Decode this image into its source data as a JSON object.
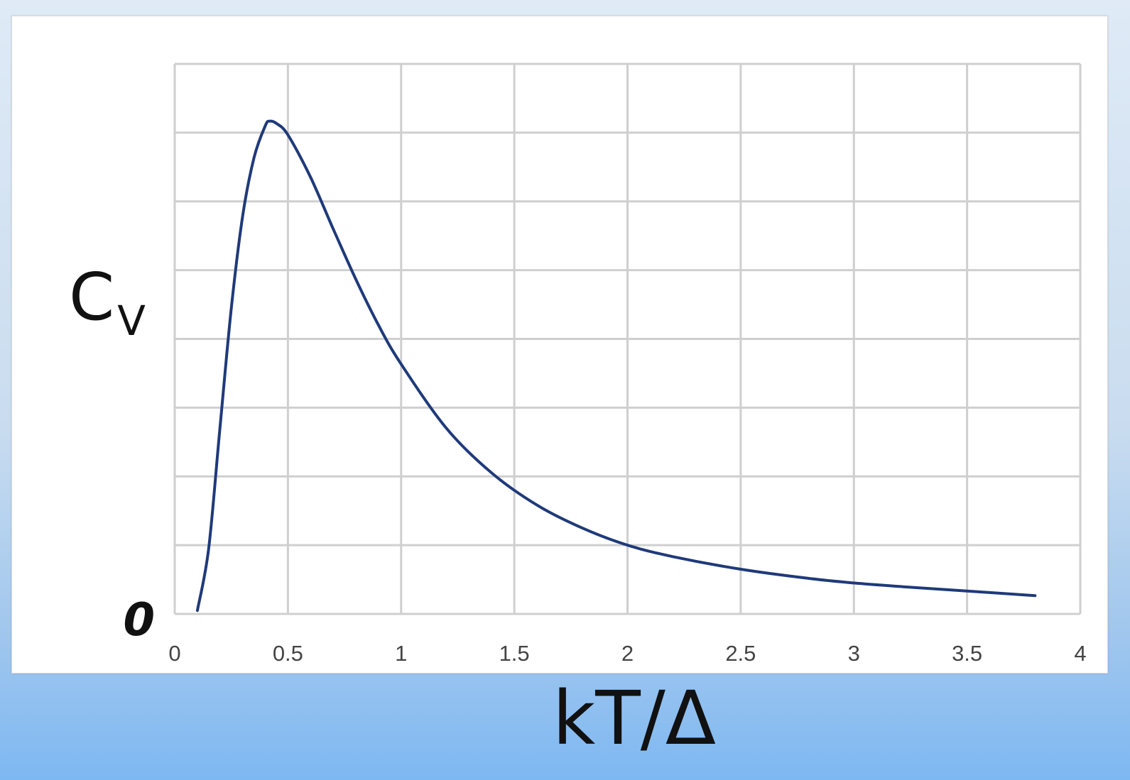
{
  "chart_data": {
    "type": "line",
    "title": "",
    "xlabel": "kT/Δ",
    "ylabel": "C",
    "ylabel_subscript": "V",
    "xlim": [
      0,
      4
    ],
    "ylim": [
      0,
      0.48
    ],
    "x_ticks": [
      "0",
      "0.5",
      "1",
      "1.5",
      "2",
      "2.5",
      "3",
      "3.5",
      "4"
    ],
    "y_ticks": [
      "0"
    ],
    "grid": true,
    "line_color": "#1f3a7a",
    "series": [
      {
        "name": "",
        "x": [
          0.1,
          0.15,
          0.2,
          0.25,
          0.3,
          0.35,
          0.4,
          0.42,
          0.45,
          0.5,
          0.6,
          0.7,
          0.8,
          0.9,
          1.0,
          1.2,
          1.4,
          1.6,
          1.8,
          2.0,
          2.2,
          2.5,
          2.8,
          3.0,
          3.2,
          3.5,
          3.8
        ],
        "y": [
          0.003,
          0.057,
          0.163,
          0.267,
          0.347,
          0.398,
          0.426,
          0.43,
          0.428,
          0.418,
          0.381,
          0.336,
          0.292,
          0.252,
          0.218,
          0.162,
          0.123,
          0.095,
          0.075,
          0.06,
          0.05,
          0.039,
          0.031,
          0.027,
          0.024,
          0.02,
          0.016
        ]
      }
    ]
  }
}
